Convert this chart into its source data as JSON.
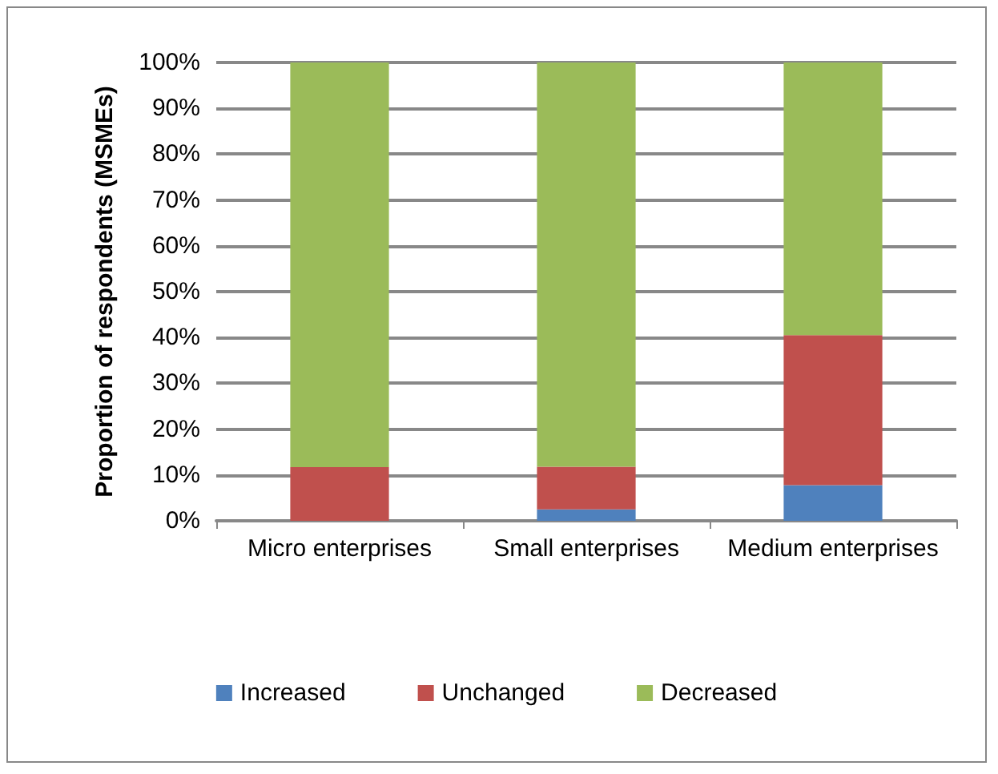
{
  "chart_data": {
    "type": "bar",
    "stacked": true,
    "ylabel": "Proportion of respondents (MSMEs)",
    "categories": [
      "Micro enterprises",
      "Small enterprises",
      "Medium enterprises"
    ],
    "series": [
      {
        "name": "Increased",
        "color": "#4f81bd",
        "values": [
          0,
          2.5,
          7.8
        ]
      },
      {
        "name": "Unchanged",
        "color": "#c0504d",
        "values": [
          11.7,
          9.3,
          32.7
        ]
      },
      {
        "name": "Decreased",
        "color": "#9bbb59",
        "values": [
          88.3,
          88.2,
          59.5
        ]
      }
    ],
    "ylim": [
      0,
      100
    ],
    "yticks": [
      {
        "value": 0,
        "label": "0%"
      },
      {
        "value": 10,
        "label": "10%"
      },
      {
        "value": 20,
        "label": "20%"
      },
      {
        "value": 30,
        "label": "30%"
      },
      {
        "value": 40,
        "label": "40%"
      },
      {
        "value": 50,
        "label": "50%"
      },
      {
        "value": 60,
        "label": "60%"
      },
      {
        "value": 70,
        "label": "70%"
      },
      {
        "value": 80,
        "label": "80%"
      },
      {
        "value": 90,
        "label": "90%"
      },
      {
        "value": 100,
        "label": "100%"
      }
    ],
    "grid": "y",
    "legend": "bottom"
  }
}
